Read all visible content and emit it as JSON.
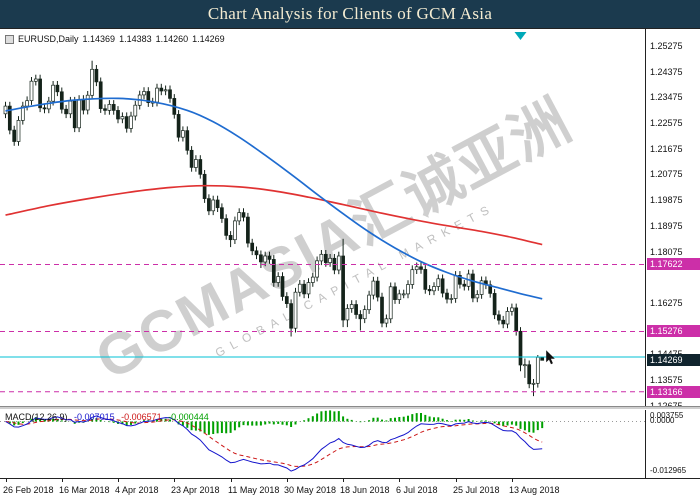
{
  "banner": {
    "title": "Chart Analysis for Clients of GCM Asia",
    "bg": "#1b3a4e",
    "fg": "#f4ecd2"
  },
  "symbol_info": {
    "symbol": "EURUSD,Daily",
    "open": "1.14369",
    "high": "1.14383",
    "low": "1.14260",
    "close": "1.14269"
  },
  "watermark": {
    "line1": "GCMASIA汇诚亚洲",
    "line2": "GLOBAL CAPITAL MARKETS"
  },
  "macd": {
    "label": "MACD(12,26,9)",
    "values": [
      "-0.007015",
      "-0.006571",
      "-0.000444"
    ],
    "axis_top": "0.003755",
    "axis_zero": "0.0000",
    "axis_bottom": "-0.012965"
  },
  "chart_data": {
    "type": "candlestick",
    "title": "EURUSD Daily with moving averages, horizontal levels and MACD(12,26,9)",
    "symbol": "EURUSD",
    "timeframe": "Daily",
    "price_range": {
      "top": 1.258,
      "bottom": 1.127
    },
    "y_axis_labels": [
      "1.25275",
      "1.24375",
      "1.23475",
      "1.22575",
      "1.21675",
      "1.20775",
      "1.19875",
      "1.18975",
      "1.18075",
      "1.16275",
      "1.14475",
      "1.13575",
      "1.12675"
    ],
    "levels": [
      {
        "price": 1.17622,
        "label": "1.17622"
      },
      {
        "price": 1.15276,
        "label": "1.15276"
      },
      {
        "price": 1.13166,
        "label": "1.13166"
      }
    ],
    "ask_line": {
      "price": 1.14383
    },
    "current_price": {
      "price": 1.14269,
      "label": "1.14269"
    },
    "shift_marker_index": 119,
    "macd_periods": [
      12,
      26,
      9
    ],
    "colors": {
      "candle_up": "#ffffff",
      "candle_down": "#14231a",
      "candle_line": "#14231a",
      "level": "#cc2fa8",
      "ask": "#00c2d4",
      "current_badge": "#10242e",
      "shift_marker": "#00a9b8",
      "macd_main": "#1414cc",
      "macd_signal": "#cc1616",
      "macd_hist": "#00a000"
    },
    "ma_fast": {
      "color": "#1f6cd0",
      "points": [
        [
          0,
          1.23
        ],
        [
          8,
          1.2322
        ],
        [
          16,
          1.2338
        ],
        [
          26,
          1.2344
        ],
        [
          34,
          1.2332
        ],
        [
          42,
          1.2302
        ],
        [
          48,
          1.2262
        ],
        [
          54,
          1.2208
        ],
        [
          60,
          1.2145
        ],
        [
          66,
          1.2078
        ],
        [
          72,
          1.2008
        ],
        [
          78,
          1.194
        ],
        [
          84,
          1.1876
        ],
        [
          90,
          1.182
        ],
        [
          96,
          1.1772
        ],
        [
          102,
          1.1734
        ],
        [
          108,
          1.1704
        ],
        [
          114,
          1.168
        ],
        [
          119,
          1.166
        ],
        [
          124,
          1.1642
        ]
      ]
    },
    "ma_slow": {
      "color": "#e03232",
      "points": [
        [
          0,
          1.1935
        ],
        [
          10,
          1.1968
        ],
        [
          20,
          1.1995
        ],
        [
          30,
          1.2018
        ],
        [
          38,
          1.2032
        ],
        [
          46,
          1.2038
        ],
        [
          54,
          1.2034
        ],
        [
          62,
          1.202
        ],
        [
          70,
          1.1998
        ],
        [
          78,
          1.1972
        ],
        [
          86,
          1.1945
        ],
        [
          94,
          1.192
        ],
        [
          102,
          1.1898
        ],
        [
          110,
          1.1878
        ],
        [
          117,
          1.1857
        ],
        [
          124,
          1.1832
        ]
      ]
    },
    "x_axis_labels": [
      {
        "label": "26 Feb 2018",
        "index": 0
      },
      {
        "label": "16 Mar 2018",
        "index": 13
      },
      {
        "label": "4 Apr 2018",
        "index": 26
      },
      {
        "label": "23 Apr 2018",
        "index": 39
      },
      {
        "label": "11 May 2018",
        "index": 52
      },
      {
        "label": "30 May 2018",
        "index": 65
      },
      {
        "label": "18 Jun 2018",
        "index": 78
      },
      {
        "label": "6 Jul 2018",
        "index": 91
      },
      {
        "label": "25 Jul 2018",
        "index": 104
      },
      {
        "label": "13 Aug 2018",
        "index": 117
      }
    ],
    "candles": [
      [
        1.229,
        1.2332,
        1.2275,
        1.2317
      ],
      [
        1.2317,
        1.2332,
        1.2218,
        1.2233
      ],
      [
        1.2233,
        1.2248,
        1.2178,
        1.2193
      ],
      [
        1.2193,
        1.2282,
        1.2178,
        1.2267
      ],
      [
        1.2267,
        1.2332,
        1.2252,
        1.2317
      ],
      [
        1.2317,
        1.2351,
        1.2302,
        1.2336
      ],
      [
        1.2336,
        1.2419,
        1.2321,
        1.2404
      ],
      [
        1.2404,
        1.2427,
        1.2389,
        1.2412
      ],
      [
        1.2412,
        1.2427,
        1.2296,
        1.2311
      ],
      [
        1.2311,
        1.2326,
        1.2292,
        1.2307
      ],
      [
        1.2307,
        1.2349,
        1.2292,
        1.2334
      ],
      [
        1.2334,
        1.2405,
        1.2319,
        1.239
      ],
      [
        1.239,
        1.2405,
        1.2352,
        1.2367
      ],
      [
        1.2367,
        1.2382,
        1.2291,
        1.2306
      ],
      [
        1.2306,
        1.2321,
        1.2275,
        1.229
      ],
      [
        1.229,
        1.2349,
        1.2275,
        1.2334
      ],
      [
        1.2334,
        1.2349,
        1.2226,
        1.2241
      ],
      [
        1.2241,
        1.2355,
        1.2226,
        1.234
      ],
      [
        1.234,
        1.2355,
        1.2288,
        1.2303
      ],
      [
        1.2303,
        1.237,
        1.2288,
        1.2355
      ],
      [
        1.2355,
        1.2476,
        1.234,
        1.2446
      ],
      [
        1.2446,
        1.2461,
        1.2387,
        1.2402
      ],
      [
        1.2402,
        1.2417,
        1.2293,
        1.2308
      ],
      [
        1.2308,
        1.2323,
        1.2287,
        1.2302
      ],
      [
        1.2302,
        1.2338,
        1.2287,
        1.2323
      ],
      [
        1.2323,
        1.2338,
        1.2287,
        1.2302
      ],
      [
        1.2302,
        1.2317,
        1.2257,
        1.2272
      ],
      [
        1.2272,
        1.2295,
        1.2257,
        1.228
      ],
      [
        1.228,
        1.2295,
        1.2224,
        1.2239
      ],
      [
        1.2239,
        1.2297,
        1.2224,
        1.2282
      ],
      [
        1.2282,
        1.2335,
        1.2267,
        1.232
      ],
      [
        1.232,
        1.2371,
        1.2305,
        1.2356
      ],
      [
        1.2356,
        1.2383,
        1.2341,
        1.2368
      ],
      [
        1.2368,
        1.2383,
        1.2314,
        1.2329
      ],
      [
        1.2329,
        1.2346,
        1.2314,
        1.2331
      ],
      [
        1.2331,
        1.2395,
        1.2316,
        1.238
      ],
      [
        1.238,
        1.2395,
        1.2355,
        1.237
      ],
      [
        1.237,
        1.2389,
        1.2355,
        1.2374
      ],
      [
        1.2374,
        1.2389,
        1.2329,
        1.2344
      ],
      [
        1.2344,
        1.2359,
        1.2273,
        1.2288
      ],
      [
        1.2288,
        1.2303,
        1.2193,
        1.2208
      ],
      [
        1.2208,
        1.2246,
        1.2193,
        1.2231
      ],
      [
        1.2231,
        1.2246,
        1.2147,
        1.2162
      ],
      [
        1.2162,
        1.2177,
        1.2087,
        1.2102
      ],
      [
        1.2102,
        1.2145,
        1.2087,
        1.213
      ],
      [
        1.213,
        1.2145,
        1.2063,
        1.2078
      ],
      [
        1.2078,
        1.2093,
        1.1978,
        1.1993
      ],
      [
        1.1993,
        1.2008,
        1.1935,
        1.195
      ],
      [
        1.195,
        1.2003,
        1.1935,
        1.1988
      ],
      [
        1.1988,
        1.2003,
        1.1946,
        1.1961
      ],
      [
        1.1961,
        1.1976,
        1.1908,
        1.1923
      ],
      [
        1.1923,
        1.1938,
        1.1849,
        1.1864
      ],
      [
        1.1864,
        1.1879,
        1.1823,
        1.1849
      ],
      [
        1.1849,
        1.193,
        1.1834,
        1.1915
      ],
      [
        1.1915,
        1.1959,
        1.19,
        1.1944
      ],
      [
        1.1944,
        1.1959,
        1.1913,
        1.1928
      ],
      [
        1.1928,
        1.1943,
        1.1822,
        1.1837
      ],
      [
        1.1837,
        1.1852,
        1.1795,
        1.181
      ],
      [
        1.181,
        1.1825,
        1.1781,
        1.1796
      ],
      [
        1.1796,
        1.1811,
        1.175,
        1.1771
      ],
      [
        1.1771,
        1.1807,
        1.1756,
        1.1792
      ],
      [
        1.1792,
        1.1807,
        1.1765,
        1.178
      ],
      [
        1.178,
        1.1795,
        1.1684,
        1.1699
      ],
      [
        1.1699,
        1.1735,
        1.1684,
        1.172
      ],
      [
        1.172,
        1.1735,
        1.1635,
        1.165
      ],
      [
        1.165,
        1.1665,
        1.161,
        1.1625
      ],
      [
        1.1625,
        1.164,
        1.151,
        1.1539
      ],
      [
        1.1539,
        1.168,
        1.1524,
        1.1665
      ],
      [
        1.1665,
        1.1708,
        1.165,
        1.1693
      ],
      [
        1.1693,
        1.1708,
        1.1644,
        1.1659
      ],
      [
        1.1659,
        1.1714,
        1.1644,
        1.1699
      ],
      [
        1.1699,
        1.1733,
        1.1684,
        1.1718
      ],
      [
        1.1718,
        1.179,
        1.1703,
        1.1775
      ],
      [
        1.1775,
        1.1813,
        1.176,
        1.1798
      ],
      [
        1.1798,
        1.1813,
        1.1754,
        1.1769
      ],
      [
        1.1769,
        1.1799,
        1.1754,
        1.1784
      ],
      [
        1.1784,
        1.1799,
        1.1728,
        1.1743
      ],
      [
        1.1743,
        1.1807,
        1.1728,
        1.1792
      ],
      [
        1.1792,
        1.1852,
        1.1543,
        1.1568
      ],
      [
        1.1568,
        1.1623,
        1.1543,
        1.1608
      ],
      [
        1.1608,
        1.1637,
        1.1593,
        1.1622
      ],
      [
        1.1622,
        1.1637,
        1.1572,
        1.1587
      ],
      [
        1.1587,
        1.1602,
        1.1531,
        1.1572
      ],
      [
        1.1572,
        1.1619,
        1.1557,
        1.1604
      ],
      [
        1.1604,
        1.167,
        1.1589,
        1.1655
      ],
      [
        1.1655,
        1.1719,
        1.164,
        1.1704
      ],
      [
        1.1704,
        1.1719,
        1.1633,
        1.1648
      ],
      [
        1.1648,
        1.1663,
        1.1542,
        1.1557
      ],
      [
        1.1557,
        1.1587,
        1.1542,
        1.1572
      ],
      [
        1.1572,
        1.1699,
        1.1557,
        1.1684
      ],
      [
        1.1684,
        1.1699,
        1.1624,
        1.1639
      ],
      [
        1.1639,
        1.1674,
        1.1624,
        1.1659
      ],
      [
        1.1659,
        1.1674,
        1.1644,
        1.1659
      ],
      [
        1.1659,
        1.1707,
        1.1644,
        1.1692
      ],
      [
        1.1692,
        1.1759,
        1.1677,
        1.1744
      ],
      [
        1.1744,
        1.1769,
        1.1729,
        1.1754
      ],
      [
        1.1754,
        1.1769,
        1.173,
        1.1745
      ],
      [
        1.1745,
        1.176,
        1.166,
        1.1675
      ],
      [
        1.1675,
        1.169,
        1.1655,
        1.167
      ],
      [
        1.167,
        1.17,
        1.1655,
        1.1685
      ],
      [
        1.1685,
        1.1727,
        1.167,
        1.1712
      ],
      [
        1.1712,
        1.1727,
        1.1647,
        1.1662
      ],
      [
        1.1662,
        1.1677,
        1.1626,
        1.1641
      ],
      [
        1.1641,
        1.1658,
        1.1626,
        1.1643
      ],
      [
        1.1643,
        1.1739,
        1.1628,
        1.1724
      ],
      [
        1.1724,
        1.1739,
        1.1678,
        1.1693
      ],
      [
        1.1693,
        1.1708,
        1.1671,
        1.1686
      ],
      [
        1.1686,
        1.1744,
        1.1671,
        1.1729
      ],
      [
        1.1729,
        1.1744,
        1.163,
        1.1645
      ],
      [
        1.1645,
        1.1672,
        1.163,
        1.1657
      ],
      [
        1.1657,
        1.172,
        1.1642,
        1.1705
      ],
      [
        1.1705,
        1.172,
        1.1676,
        1.1691
      ],
      [
        1.1691,
        1.1706,
        1.1646,
        1.1661
      ],
      [
        1.1661,
        1.1676,
        1.1571,
        1.1586
      ],
      [
        1.1586,
        1.1601,
        1.1552,
        1.1567
      ],
      [
        1.1567,
        1.1582,
        1.1539,
        1.1554
      ],
      [
        1.1554,
        1.1613,
        1.1539,
        1.1598
      ],
      [
        1.1598,
        1.1625,
        1.1583,
        1.161
      ],
      [
        1.161,
        1.1625,
        1.1513,
        1.1528
      ],
      [
        1.1528,
        1.1543,
        1.1388,
        1.141
      ],
      [
        1.141,
        1.1433,
        1.1365,
        1.1411
      ],
      [
        1.1411,
        1.1426,
        1.1329,
        1.1344
      ],
      [
        1.1344,
        1.1361,
        1.1301,
        1.1346
      ],
      [
        1.1346,
        1.1445,
        1.1331,
        1.1437
      ],
      [
        1.14369,
        1.14383,
        1.1426,
        1.14269
      ]
    ]
  }
}
